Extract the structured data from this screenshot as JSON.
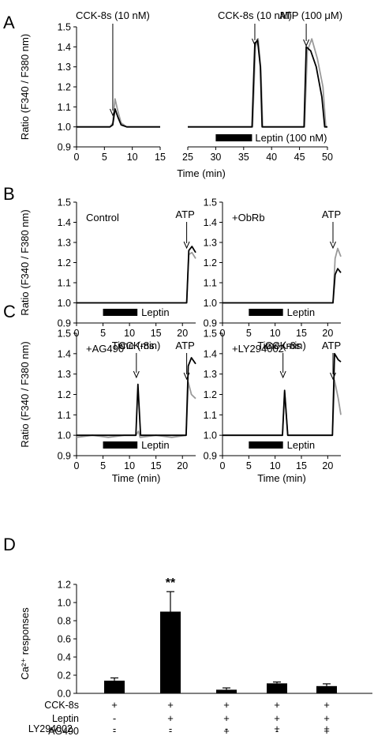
{
  "figure": {
    "panels": [
      {
        "id": "A",
        "letter": "A"
      },
      {
        "id": "B",
        "letter": "B"
      },
      {
        "id": "C",
        "letter": "C"
      },
      {
        "id": "D",
        "letter": "D"
      }
    ]
  },
  "colors": {
    "black_trace": "#000000",
    "gray_trace": "#9a9a9a",
    "bar": "#000000"
  },
  "chart_data": [
    {
      "panel": "A",
      "type": "line",
      "ylabel": "Ratio (F340 / F380 nm)",
      "xlabel": "Time (min)",
      "ylim": [
        0.9,
        1.5
      ],
      "yticks": [
        "0.9",
        "1.0",
        "1.1",
        "1.2",
        "1.3",
        "1.4",
        "1.5"
      ],
      "segments": [
        {
          "xlim": [
            0,
            15
          ],
          "xticks": [
            "0",
            "5",
            "10",
            "15"
          ],
          "series": [
            {
              "color": "black",
              "points": [
                [
                  0,
                  1.0
                ],
                [
                  1,
                  1.0
                ],
                [
                  2,
                  1.0
                ],
                [
                  3,
                  1.0
                ],
                [
                  4,
                  1.0
                ],
                [
                  5,
                  1.0
                ],
                [
                  6,
                  1.0
                ],
                [
                  6.5,
                  1.01
                ],
                [
                  6.9,
                  1.09
                ],
                [
                  7.4,
                  1.05
                ],
                [
                  8,
                  1.01
                ],
                [
                  9,
                  1.0
                ],
                [
                  10,
                  1.0
                ],
                [
                  11,
                  1.0
                ],
                [
                  12,
                  1.0
                ],
                [
                  13,
                  1.0
                ],
                [
                  14,
                  1.0
                ],
                [
                  15,
                  1.0
                ]
              ]
            },
            {
              "color": "gray",
              "points": [
                [
                  0,
                  1.0
                ],
                [
                  2,
                  1.0
                ],
                [
                  4,
                  1.0
                ],
                [
                  6,
                  1.0
                ],
                [
                  6.5,
                  1.02
                ],
                [
                  6.9,
                  1.14
                ],
                [
                  7.4,
                  1.08
                ],
                [
                  8,
                  1.02
                ],
                [
                  9,
                  1.0
                ],
                [
                  11,
                  1.0
                ],
                [
                  13,
                  1.0
                ],
                [
                  15,
                  1.0
                ]
              ]
            }
          ]
        },
        {
          "xlim": [
            25,
            50
          ],
          "xticks": [
            "25",
            "30",
            "35",
            "40",
            "45",
            "50"
          ],
          "series": [
            {
              "color": "black",
              "points": [
                [
                  25,
                  1.0
                ],
                [
                  27,
                  1.0
                ],
                [
                  29,
                  1.0
                ],
                [
                  31,
                  1.0
                ],
                [
                  33,
                  1.0
                ],
                [
                  35,
                  1.0
                ],
                [
                  36.5,
                  1.0
                ],
                [
                  37,
                  1.42
                ],
                [
                  37.5,
                  1.43
                ],
                [
                  38,
                  1.3
                ],
                [
                  38.3,
                  1.0
                ],
                [
                  40,
                  1.0
                ],
                [
                  42,
                  1.0
                ],
                [
                  44,
                  1.0
                ],
                [
                  45.8,
                  1.0
                ],
                [
                  46.2,
                  1.4
                ],
                [
                  47,
                  1.38
                ],
                [
                  48,
                  1.3
                ],
                [
                  49,
                  1.15
                ],
                [
                  49.5,
                  1.0
                ],
                [
                  50,
                  1.0
                ]
              ]
            },
            {
              "color": "gray",
              "points": [
                [
                  25,
                  1.0
                ],
                [
                  30,
                  1.0
                ],
                [
                  35,
                  1.0
                ],
                [
                  36.6,
                  1.0
                ],
                [
                  37.1,
                  1.4
                ],
                [
                  37.6,
                  1.44
                ],
                [
                  38.1,
                  1.28
                ],
                [
                  38.4,
                  1.0
                ],
                [
                  42,
                  1.0
                ],
                [
                  45.9,
                  1.0
                ],
                [
                  46.4,
                  1.38
                ],
                [
                  47.2,
                  1.44
                ],
                [
                  48.2,
                  1.34
                ],
                [
                  49.2,
                  1.2
                ],
                [
                  49.7,
                  1.0
                ],
                [
                  50,
                  1.0
                ]
              ]
            }
          ]
        }
      ],
      "annotations": [
        {
          "text": "CCK-8s (10 nM)",
          "x": 6.5,
          "segment": 0
        },
        {
          "text": "CCK-8s (10 nM)",
          "x": 37,
          "segment": 1
        },
        {
          "text": "ATP (100 μM)",
          "x": 46.2,
          "segment": 1
        }
      ],
      "bar": {
        "label": "Leptin (100 nM)",
        "x0": 30,
        "x1": 36.5,
        "segment": 1
      }
    },
    {
      "panel": "B",
      "type": "line",
      "ylabel": "Ratio (F340 / F380 nm)",
      "xlabel": "Time (min)",
      "ylim": [
        0.9,
        1.5
      ],
      "yticks": [
        "0.9",
        "1.0",
        "1.1",
        "1.2",
        "1.3",
        "1.4",
        "1.5"
      ],
      "subplots": [
        {
          "xlim": [
            0,
            22.5
          ],
          "xticks": [
            "0",
            "5",
            "10",
            "15",
            "20"
          ],
          "label": "Control",
          "atp_x": 20.8,
          "series": [
            {
              "color": "gray",
              "points": [
                [
                  0,
                  1.0
                ],
                [
                  5,
                  1.0
                ],
                [
                  10,
                  1.0
                ],
                [
                  15,
                  1.0
                ],
                [
                  20.8,
                  1.0
                ],
                [
                  21.2,
                  1.24
                ],
                [
                  21.8,
                  1.25
                ],
                [
                  22.5,
                  1.22
                ]
              ]
            },
            {
              "color": "black",
              "points": [
                [
                  0,
                  1.0
                ],
                [
                  5,
                  1.0
                ],
                [
                  10,
                  1.0
                ],
                [
                  15,
                  1.0
                ],
                [
                  20.8,
                  1.0
                ],
                [
                  21.2,
                  1.26
                ],
                [
                  21.8,
                  1.28
                ],
                [
                  22.5,
                  1.25
                ]
              ]
            }
          ]
        },
        {
          "xlim": [
            0,
            22.5
          ],
          "xticks": [
            "0",
            "5",
            "10",
            "15",
            "20"
          ],
          "label": "+ObRb",
          "atp_x": 21.0,
          "series": [
            {
              "color": "gray",
              "points": [
                [
                  0,
                  1.0
                ],
                [
                  5,
                  1.0
                ],
                [
                  10,
                  1.0
                ],
                [
                  15,
                  1.0
                ],
                [
                  21.0,
                  1.0
                ],
                [
                  21.4,
                  1.22
                ],
                [
                  21.9,
                  1.27
                ],
                [
                  22.5,
                  1.23
                ]
              ]
            },
            {
              "color": "black",
              "points": [
                [
                  0,
                  1.0
                ],
                [
                  5,
                  1.0
                ],
                [
                  10,
                  1.0
                ],
                [
                  15,
                  1.0
                ],
                [
                  21.0,
                  1.0
                ],
                [
                  21.4,
                  1.14
                ],
                [
                  21.9,
                  1.17
                ],
                [
                  22.5,
                  1.15
                ]
              ]
            }
          ]
        }
      ],
      "bar_label": "Leptin",
      "bar": [
        5,
        11.5
      ],
      "atp_label": "ATP"
    },
    {
      "panel": "C",
      "type": "line",
      "ylabel": "Ratio (F340 / F380 nm)",
      "xlabel": "Time (min)",
      "ylim": [
        0.9,
        1.5
      ],
      "yticks": [
        "0.9",
        "1.0",
        "1.1",
        "1.2",
        "1.3",
        "1.4",
        "1.5"
      ],
      "subplots": [
        {
          "xlim": [
            0,
            22.5
          ],
          "xticks": [
            "0",
            "5",
            "10",
            "15",
            "20"
          ],
          "label": "+AG490",
          "cck_x": 11.3,
          "atp_x": 20.8,
          "series": [
            {
              "color": "gray",
              "points": [
                [
                  0,
                  0.99
                ],
                [
                  3,
                  1.0
                ],
                [
                  6,
                  0.99
                ],
                [
                  9,
                  1.0
                ],
                [
                  11.2,
                  1.0
                ],
                [
                  11.7,
                  1.02
                ],
                [
                  12,
                  0.99
                ],
                [
                  15,
                  1.0
                ],
                [
                  18,
                  0.99
                ],
                [
                  20.7,
                  1.0
                ],
                [
                  21.1,
                  1.26
                ],
                [
                  21.7,
                  1.2
                ],
                [
                  22.5,
                  1.18
                ]
              ]
            },
            {
              "color": "black",
              "points": [
                [
                  0,
                  1.0
                ],
                [
                  3,
                  1.0
                ],
                [
                  6,
                  1.0
                ],
                [
                  9,
                  1.0
                ],
                [
                  11.2,
                  1.0
                ],
                [
                  11.6,
                  1.25
                ],
                [
                  12.1,
                  1.0
                ],
                [
                  15,
                  1.0
                ],
                [
                  18,
                  1.0
                ],
                [
                  20.7,
                  1.0
                ],
                [
                  21.1,
                  1.34
                ],
                [
                  21.7,
                  1.38
                ],
                [
                  22.5,
                  1.35
                ]
              ]
            }
          ]
        },
        {
          "xlim": [
            0,
            22.5
          ],
          "xticks": [
            "0",
            "5",
            "10",
            "15",
            "20"
          ],
          "label": "+LY294002",
          "cck_x": 11.5,
          "atp_x": 21.0,
          "series": [
            {
              "color": "gray",
              "points": [
                [
                  0,
                  1.0
                ],
                [
                  5,
                  1.0
                ],
                [
                  10,
                  1.0
                ],
                [
                  11.4,
                  1.0
                ],
                [
                  11.8,
                  1.21
                ],
                [
                  12.4,
                  1.0
                ],
                [
                  16,
                  1.0
                ],
                [
                  20.9,
                  1.0
                ],
                [
                  21.3,
                  1.27
                ],
                [
                  22,
                  1.18
                ],
                [
                  22.5,
                  1.1
                ]
              ]
            },
            {
              "color": "black",
              "points": [
                [
                  0,
                  1.0
                ],
                [
                  5,
                  1.0
                ],
                [
                  10,
                  1.0
                ],
                [
                  11.4,
                  1.0
                ],
                [
                  11.8,
                  1.22
                ],
                [
                  12.4,
                  1.0
                ],
                [
                  16,
                  1.0
                ],
                [
                  20.9,
                  1.0
                ],
                [
                  21.3,
                  1.4
                ],
                [
                  22,
                  1.37
                ],
                [
                  22.5,
                  1.36
                ]
              ]
            }
          ]
        }
      ],
      "bar_label": "Leptin",
      "bar": [
        5,
        11.5
      ],
      "cck_label": "CCK-8s",
      "atp_label": "ATP"
    },
    {
      "panel": "D",
      "type": "bar",
      "ylabel": "Ca²⁺ responses",
      "ylim": [
        0,
        1.2
      ],
      "yticks": [
        "0.0",
        "0.2",
        "0.4",
        "0.6",
        "0.8",
        "1.0",
        "1.2"
      ],
      "values": [
        0.14,
        0.9,
        0.04,
        0.11,
        0.08
      ],
      "errors": [
        0.03,
        0.22,
        0.02,
        0.015,
        0.025
      ],
      "significance": [
        "",
        "**",
        "",
        "",
        ""
      ],
      "table": {
        "rows": [
          {
            "label": "CCK-8s",
            "cells": [
              "+",
              "+",
              "+",
              "+",
              "+"
            ]
          },
          {
            "label": "Leptin",
            "cells": [
              "-",
              "+",
              "+",
              "+",
              "+"
            ]
          },
          {
            "label": "AG490",
            "cells": [
              "-",
              "-",
              "+",
              "-",
              "+"
            ]
          },
          {
            "label": "LY294002",
            "cells": [
              "-",
              "-",
              "-",
              "+",
              "+"
            ]
          }
        ]
      }
    }
  ]
}
